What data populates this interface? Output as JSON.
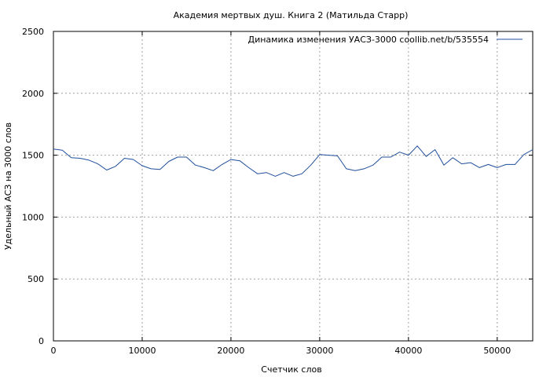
{
  "chart_data": {
    "type": "line",
    "title": "Академия мертвых душ. Книга 2 (Матильда Старр)",
    "xlabel": "Счетчик слов",
    "ylabel": "Удельный АСЗ на 3000 слов",
    "xlim": [
      0,
      54000
    ],
    "ylim": [
      0,
      2500
    ],
    "x_ticks": [
      0,
      10000,
      20000,
      30000,
      40000,
      50000
    ],
    "y_ticks": [
      0,
      500,
      1000,
      1500,
      2000,
      2500
    ],
    "grid": true,
    "legend_position": "top-right",
    "series": [
      {
        "name": "Динамика изменения УАСЗ-3000  coollib.net/b/535554",
        "color": "#1f4e9c",
        "x": [
          0,
          1000,
          2000,
          3000,
          4000,
          5000,
          6000,
          7000,
          8000,
          9000,
          10000,
          11000,
          12000,
          13000,
          14000,
          15000,
          16000,
          17000,
          18000,
          19000,
          20000,
          21000,
          22000,
          23000,
          24000,
          25000,
          26000,
          27000,
          28000,
          29000,
          30000,
          31000,
          32000,
          33000,
          34000,
          35000,
          36000,
          37000,
          38000,
          39000,
          40000,
          41000,
          42000,
          43000,
          44000,
          45000,
          46000,
          47000,
          48000,
          49000,
          50000,
          51000,
          52000,
          53000,
          54000
        ],
        "values": [
          1550,
          1540,
          1480,
          1475,
          1460,
          1430,
          1380,
          1410,
          1475,
          1465,
          1415,
          1390,
          1385,
          1450,
          1485,
          1485,
          1420,
          1400,
          1375,
          1425,
          1465,
          1455,
          1400,
          1350,
          1360,
          1330,
          1360,
          1330,
          1350,
          1420,
          1505,
          1500,
          1495,
          1390,
          1375,
          1390,
          1420,
          1485,
          1485,
          1525,
          1500,
          1575,
          1490,
          1545,
          1420,
          1480,
          1430,
          1440,
          1400,
          1425,
          1400,
          1425,
          1425,
          1505,
          1545
        ]
      }
    ]
  }
}
